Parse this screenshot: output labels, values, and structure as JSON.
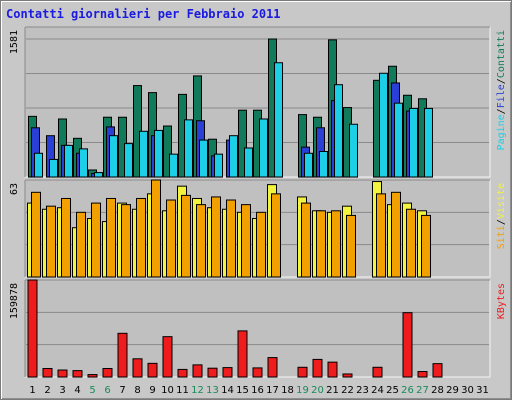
{
  "title": "Contatti giornalieri per Febbraio 2011",
  "colors": {
    "background": "#c8c8c8",
    "grid": "#8a8a8a",
    "visits": "#f2a000",
    "hits": "#117a5a",
    "files": "#2a3fd6",
    "pages": "#1ccfe6",
    "unique": "#f2f240",
    "kbytes": "#ee1c1c",
    "weekend_label": "#1a8a5a",
    "day_label": "#000000",
    "title": "#1a1ae0"
  },
  "chart_data": [
    {
      "type": "bar",
      "ylabel_max": "1581",
      "right_label": {
        "parts": [
          "Pagine",
          "/",
          "File",
          "/",
          "Contatti"
        ]
      },
      "series": [
        {
          "name": "Contatti",
          "color_key": "hits",
          "values": [
            690,
            0,
            660,
            440,
            80,
            680,
            680,
            1040,
            960,
            580,
            940,
            1150,
            430,
            0,
            760,
            760,
            1570,
            0,
            710,
            680,
            1560,
            790,
            0,
            1100,
            1260,
            930,
            890,
            0
          ]
        },
        {
          "name": "File",
          "color_key": "files",
          "values": [
            560,
            470,
            360,
            270,
            40,
            570,
            0,
            0,
            470,
            0,
            0,
            640,
            240,
            420,
            0,
            0,
            0,
            0,
            340,
            560,
            870,
            0,
            0,
            0,
            1070,
            750,
            0,
            0
          ]
        },
        {
          "name": "Pagine",
          "color_key": "pages",
          "values": [
            270,
            200,
            360,
            320,
            50,
            470,
            380,
            520,
            530,
            260,
            650,
            420,
            260,
            470,
            330,
            660,
            1300,
            0,
            270,
            290,
            1050,
            600,
            0,
            1180,
            840,
            780,
            780,
            0
          ]
        }
      ]
    },
    {
      "type": "bar",
      "ylabel_max": "63",
      "right_label": {
        "parts": [
          "Siti",
          "/",
          "Visite"
        ]
      },
      "series": [
        {
          "name": "Visite",
          "color_key": "unique",
          "values": [
            48,
            44,
            45,
            32,
            38,
            36,
            48,
            44,
            54,
            43,
            59,
            51,
            45,
            44,
            42,
            38,
            60,
            0,
            52,
            43,
            42,
            46,
            0,
            62,
            47,
            48,
            43,
            0
          ]
        },
        {
          "name": "Siti",
          "color_key": "visits",
          "values": [
            55,
            46,
            51,
            42,
            48,
            51,
            47,
            51,
            63,
            50,
            53,
            47,
            52,
            50,
            47,
            42,
            54,
            0,
            48,
            43,
            43,
            40,
            0,
            54,
            55,
            44,
            40,
            0
          ]
        }
      ]
    },
    {
      "type": "bar",
      "ylabel_max": "159878",
      "right_label": {
        "parts": [
          "KBytes"
        ]
      },
      "series": [
        {
          "name": "KBytes",
          "color_key": "kbytes",
          "values": [
            159878,
            14000,
            11500,
            10500,
            4000,
            14000,
            72000,
            30000,
            22500,
            66500,
            12500,
            20000,
            14500,
            15500,
            76000,
            15000,
            32000,
            0,
            16000,
            29000,
            24500,
            5000,
            0,
            16000,
            0,
            106000,
            9000,
            22000
          ]
        }
      ]
    }
  ],
  "days": [
    "1",
    "2",
    "3",
    "4",
    "5",
    "6",
    "7",
    "8",
    "9",
    "10",
    "11",
    "12",
    "13",
    "14",
    "15",
    "16",
    "17",
    "18",
    "19",
    "20",
    "21",
    "22",
    "23",
    "24",
    "25",
    "26",
    "27",
    "28",
    "29",
    "30",
    "31"
  ],
  "weekend_days": [
    "5",
    "6",
    "12",
    "13",
    "19",
    "20",
    "26",
    "27"
  ]
}
